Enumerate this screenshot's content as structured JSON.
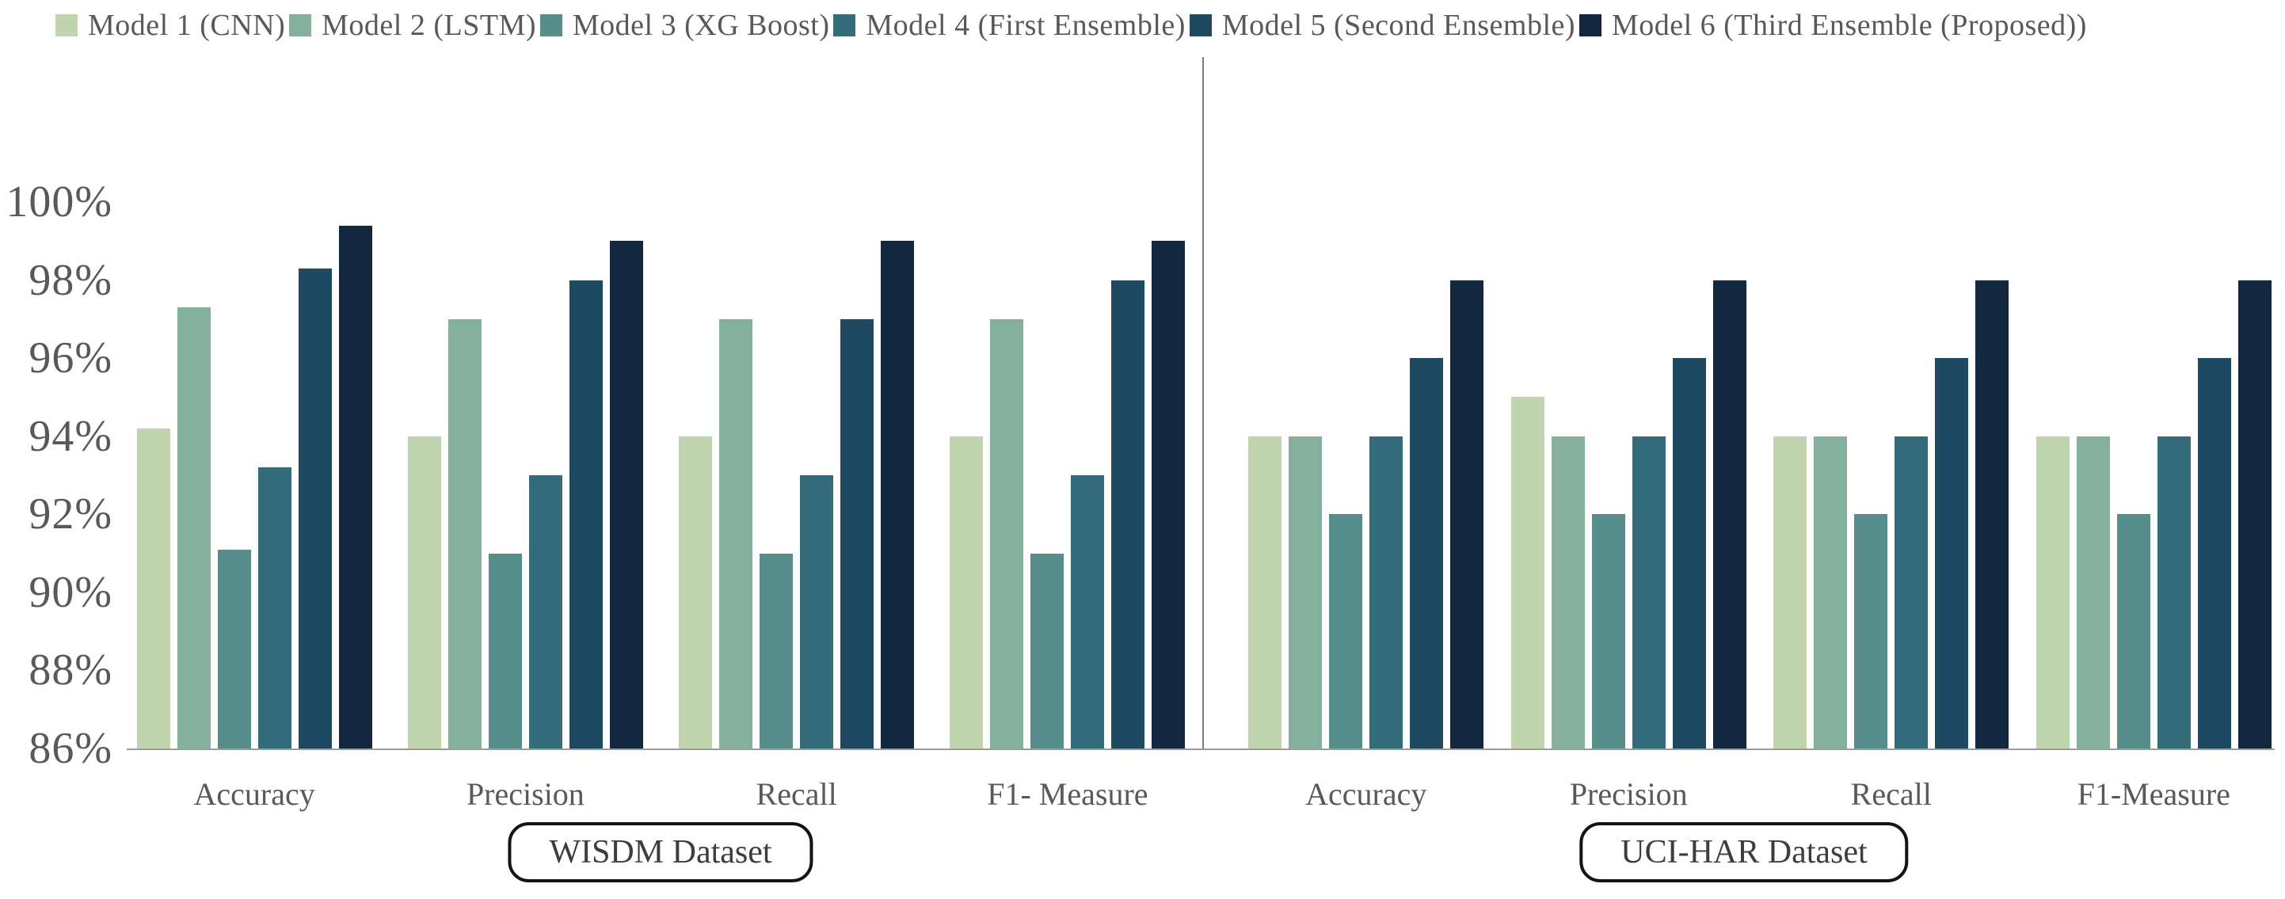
{
  "legend": {
    "items": [
      {
        "label": "Model 1 (CNN)",
        "color": "#c1d4b0"
      },
      {
        "label": "Model 2 (LSTM)",
        "color": "#86b09e"
      },
      {
        "label": "Model 3 (XG Boost)",
        "color": "#578e8c"
      },
      {
        "label": "Model 4 (First Ensemble)",
        "color": "#356c7c"
      },
      {
        "label": "Model 5 (Second Ensemble)",
        "color": "#1e4960"
      },
      {
        "label": "Model 6 (Third Ensemble (Proposed))",
        "color": "#142741"
      }
    ]
  },
  "y_axis": {
    "tick_labels": [
      "100%",
      "98%",
      "96%",
      "94%",
      "92%",
      "90%",
      "88%",
      "86%"
    ],
    "min_pct": 86,
    "max_pct": 100,
    "unit": "%"
  },
  "chart_data": {
    "type": "bar",
    "title": "",
    "xlabel": "",
    "ylabel": "",
    "ylim": [
      86,
      100
    ],
    "grid": false,
    "legend_position": "top",
    "series": [
      {
        "name": "Model 1 (CNN)",
        "color": "#c1d4b0"
      },
      {
        "name": "Model 2 (LSTM)",
        "color": "#86b09e"
      },
      {
        "name": "Model 3 (XG Boost)",
        "color": "#578e8c"
      },
      {
        "name": "Model 4 (First Ensemble)",
        "color": "#356c7c"
      },
      {
        "name": "Model 5 (Second Ensemble)",
        "color": "#1e4960"
      },
      {
        "name": "Model 6 (Third Ensemble (Proposed))",
        "color": "#142741"
      }
    ],
    "panels": [
      {
        "dataset_label": "WISDM Dataset",
        "groups": [
          {
            "category": "Accuracy",
            "values": [
              94.2,
              97.3,
              91.1,
              93.2,
              98.3,
              99.4
            ]
          },
          {
            "category": "Precision",
            "values": [
              94.0,
              97.0,
              91.0,
              93.0,
              98.0,
              99.0
            ]
          },
          {
            "category": "Recall",
            "values": [
              94.0,
              97.0,
              91.0,
              93.0,
              97.0,
              99.0
            ]
          },
          {
            "category": "F1- Measure",
            "values": [
              94.0,
              97.0,
              91.0,
              93.0,
              98.0,
              99.0
            ]
          }
        ]
      },
      {
        "dataset_label": "UCI-HAR Dataset",
        "groups": [
          {
            "category": "Accuracy",
            "values": [
              94.0,
              94.0,
              92.0,
              94.0,
              96.0,
              98.0
            ]
          },
          {
            "category": "Precision",
            "values": [
              95.0,
              94.0,
              92.0,
              94.0,
              96.0,
              98.0
            ]
          },
          {
            "category": "Recall",
            "values": [
              94.0,
              94.0,
              92.0,
              94.0,
              96.0,
              98.0
            ]
          },
          {
            "category": "F1-Measure",
            "values": [
              94.0,
              94.0,
              92.0,
              94.0,
              96.0,
              98.0
            ]
          }
        ]
      }
    ]
  }
}
